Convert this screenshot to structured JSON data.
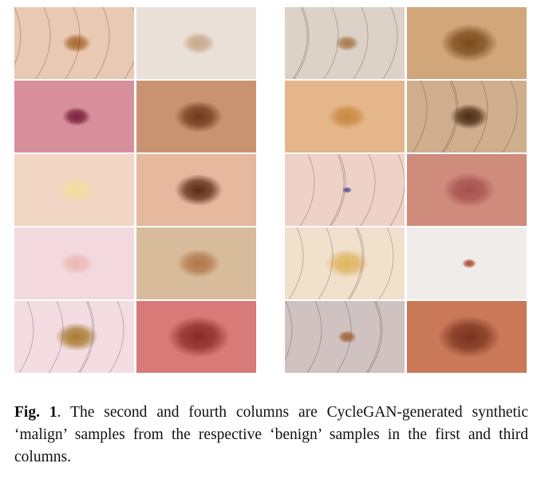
{
  "figure": {
    "caption_label": "Fig. 1",
    "caption_text": ". The second and fourth columns are CycleGAN-generated synthetic ‘malign’ samples from the respective ‘benign’ samples in the first and third columns.",
    "columns": [
      {
        "kind": "benign",
        "tiles": [
          {
            "bg": "#e9c8b4",
            "lesion": "#a86a2c",
            "ls": 0.6,
            "hair": true
          },
          {
            "bg": "#d78f9c",
            "lesion": "#7a1f3c",
            "ls": 0.6,
            "hair": false
          },
          {
            "bg": "#f1d6c4",
            "lesion": "#f2dda0",
            "ls": 0.8,
            "hair": false
          },
          {
            "bg": "#f3d9de",
            "lesion": "#ebb8b4",
            "ls": 0.7,
            "hair": false
          },
          {
            "bg": "#f4dde2",
            "lesion": "#a67a30",
            "ls": 0.9,
            "hair": true
          }
        ]
      },
      {
        "kind": "synthetic-malign",
        "tiles": [
          {
            "bg": "#e9e0d8",
            "lesion": "#c9a88a",
            "ls": 0.7,
            "hair": false
          },
          {
            "bg": "#c99372",
            "lesion": "#6e3a1c",
            "ls": 1.0,
            "hair": false
          },
          {
            "bg": "#e6b89e",
            "lesion": "#5a2a15",
            "ls": 1.0,
            "hair": false
          },
          {
            "bg": "#d7bb9a",
            "lesion": "#b07848",
            "ls": 0.9,
            "hair": false
          },
          {
            "bg": "#d87a78",
            "lesion": "#8a2a28",
            "ls": 1.3,
            "hair": false
          }
        ]
      },
      {
        "kind": "benign",
        "tiles": [
          {
            "bg": "#ddd2c8",
            "lesion": "#a87a4a",
            "ls": 0.5,
            "hair": true
          },
          {
            "bg": "#e4b68a",
            "lesion": "#c98a40",
            "ls": 0.8,
            "hair": false
          },
          {
            "bg": "#eed2c8",
            "lesion": "#50509a",
            "ls": 0.2,
            "hair": true
          },
          {
            "bg": "#f0e0cc",
            "lesion": "#e0b460",
            "ls": 0.9,
            "hair": true
          },
          {
            "bg": "#cfc2c0",
            "lesion": "#a0683a",
            "ls": 0.4,
            "hair": true
          }
        ]
      },
      {
        "kind": "synthetic-malign",
        "tiles": [
          {
            "bg": "#d0a67a",
            "lesion": "#7a4a1a",
            "ls": 1.2,
            "hair": false
          },
          {
            "bg": "#cfae8e",
            "lesion": "#4a2a14",
            "ls": 0.8,
            "hair": true
          },
          {
            "bg": "#cf8c7c",
            "lesion": "#a65050",
            "ls": 1.1,
            "hair": false
          },
          {
            "bg": "#f0ecea",
            "lesion": "#b04a30",
            "ls": 0.3,
            "hair": false
          },
          {
            "bg": "#c97858",
            "lesion": "#7a3420",
            "ls": 1.3,
            "hair": false
          }
        ]
      }
    ]
  }
}
